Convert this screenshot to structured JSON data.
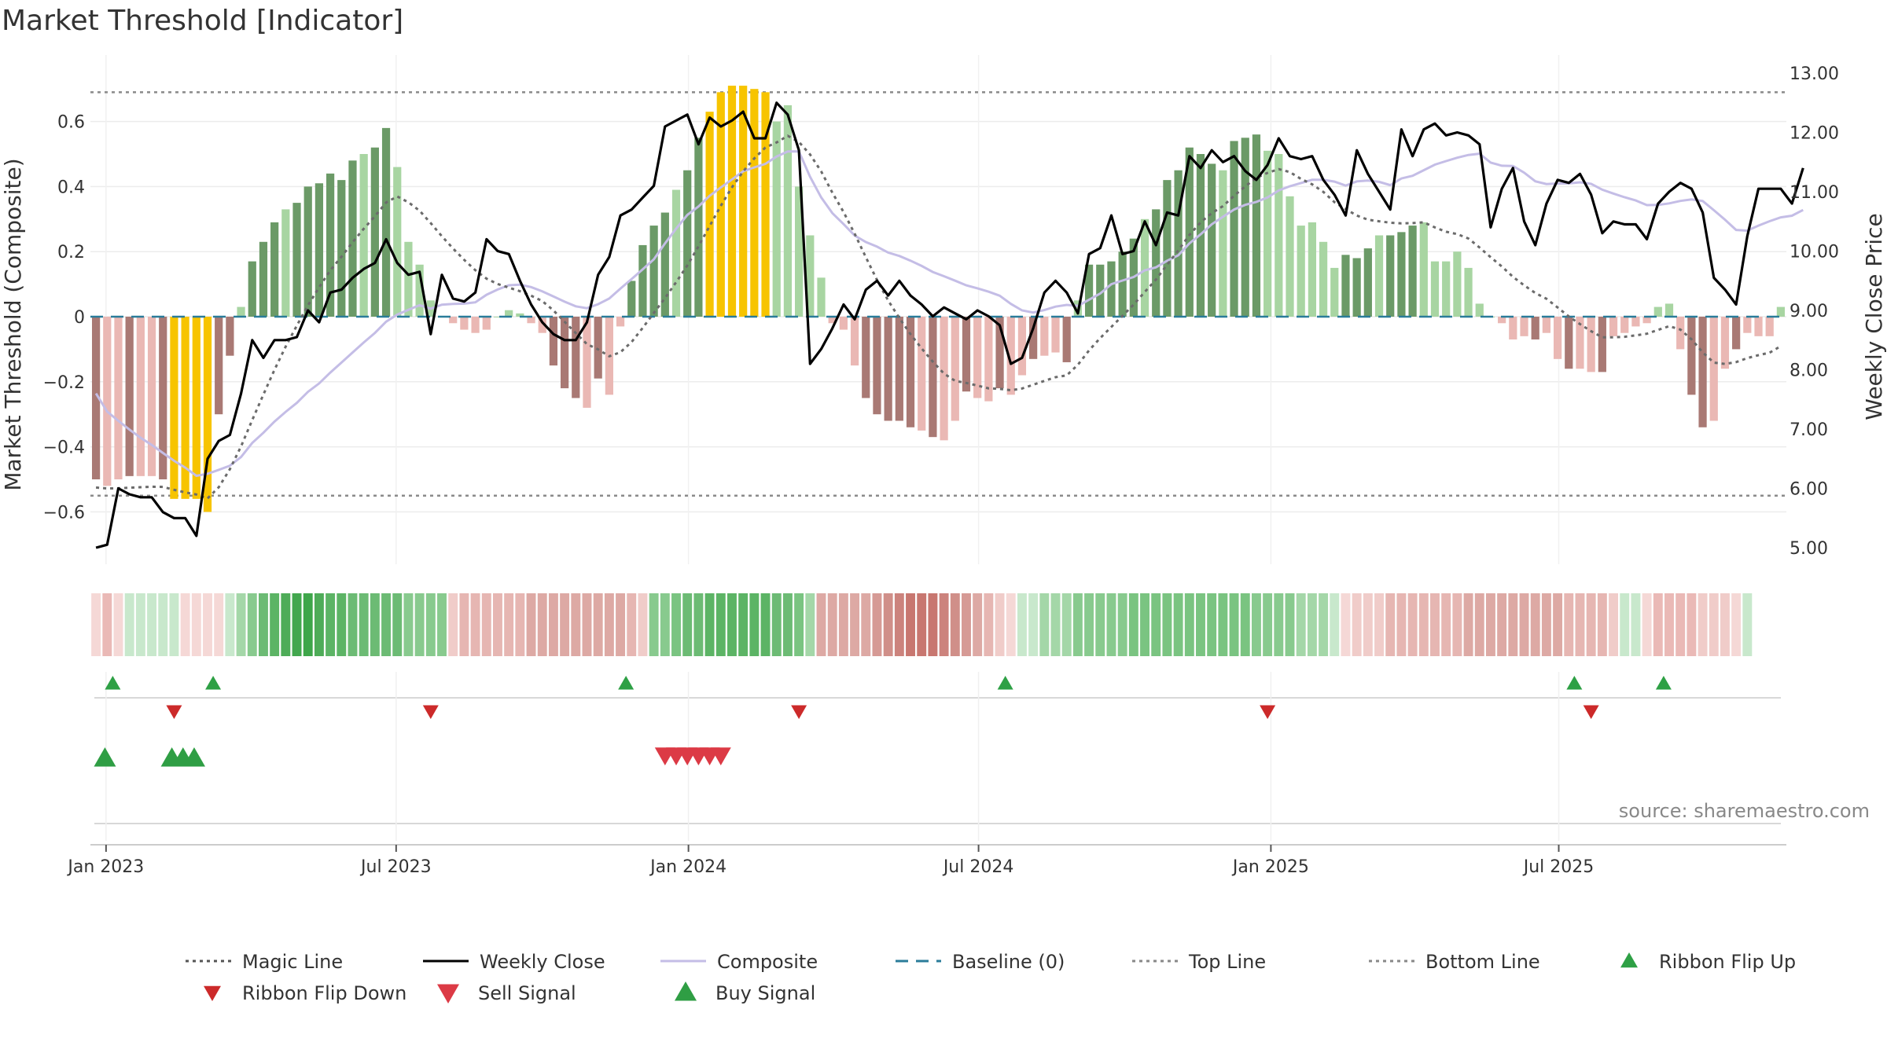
{
  "title": "Market Threshold [Indicator]",
  "source": "source: sharemaestro.com",
  "colors": {
    "bar_pos_strong": "#6b9a67",
    "bar_pos_weak": "#a8d5a2",
    "bar_neg_strong": "#a97974",
    "bar_neg_weak": "#eab8b4",
    "bar_extreme": "#f7c400",
    "weekly_close": "#000000",
    "composite": "#c4bde6",
    "magic": "#6b6b6b",
    "baseline": "#2a7c9a",
    "flip_up": "#2ea045",
    "flip_down": "#cc2a2a",
    "sell": "#dc3a45",
    "buy": "#2f9e44"
  },
  "chart_data": {
    "type": "bar+line",
    "title": "Market Threshold [Indicator]",
    "ylabel_left": "Market Threshold (Composite)",
    "ylabel_right": "Weekly Close Price",
    "ylim_left": [
      -0.77,
      0.77
    ],
    "ylim_right": [
      4.5,
      13.3
    ],
    "left_ticks": [
      0.6,
      0.4,
      0.2,
      0,
      -0.2,
      -0.4,
      -0.6
    ],
    "left_tick_labels": [
      "0.6",
      "0.4",
      "0.2",
      "0",
      "−0.2",
      "−0.4",
      "−0.6"
    ],
    "right_ticks": [
      13,
      12,
      11,
      10,
      9,
      8,
      7,
      6,
      5
    ],
    "right_tick_labels": [
      "13.00",
      "12.00",
      "11.00",
      "10.00",
      "9.00",
      "8.00",
      "7.00",
      "6.00",
      "5.00"
    ],
    "x_start": "2022-12-26",
    "x_end": "2025-09-15",
    "x_ticks": [
      {
        "label": "Jan 2023",
        "week": 0.9
      },
      {
        "label": "Jul 2023",
        "week": 26.9
      },
      {
        "label": "Jan 2024",
        "week": 53.1
      },
      {
        "label": "Jul 2024",
        "week": 79.1
      },
      {
        "label": "Jan 2025",
        "week": 105.3
      },
      {
        "label": "Jul 2025",
        "week": 131.1
      }
    ],
    "top_line": 0.69,
    "bottom_line": -0.55,
    "baseline": 0,
    "composite_bars": [
      -0.5,
      -0.52,
      -0.5,
      -0.49,
      -0.49,
      -0.49,
      -0.5,
      -0.56,
      -0.56,
      -0.56,
      -0.6,
      -0.3,
      -0.12,
      0.03,
      0.17,
      0.23,
      0.29,
      0.33,
      0.35,
      0.4,
      0.41,
      0.44,
      0.42,
      0.48,
      0.5,
      0.52,
      0.58,
      0.46,
      0.23,
      0.16,
      0.05,
      0.0,
      -0.02,
      -0.04,
      -0.05,
      -0.04,
      0.0,
      0.02,
      0.01,
      -0.02,
      -0.05,
      -0.15,
      -0.22,
      -0.25,
      -0.28,
      -0.19,
      -0.24,
      -0.03,
      0.11,
      0.22,
      0.28,
      0.32,
      0.39,
      0.45,
      0.55,
      0.63,
      0.69,
      0.71,
      0.71,
      0.7,
      0.69,
      0.6,
      0.65,
      0.4,
      0.25,
      0.12,
      -0.02,
      -0.04,
      -0.15,
      -0.25,
      -0.3,
      -0.32,
      -0.32,
      -0.34,
      -0.35,
      -0.37,
      -0.38,
      -0.32,
      -0.23,
      -0.25,
      -0.26,
      -0.22,
      -0.24,
      -0.18,
      -0.13,
      -0.12,
      -0.11,
      -0.14,
      0.05,
      0.16,
      0.16,
      0.17,
      0.2,
      0.24,
      0.3,
      0.33,
      0.42,
      0.45,
      0.52,
      0.5,
      0.47,
      0.45,
      0.54,
      0.55,
      0.56,
      0.51,
      0.5,
      0.37,
      0.28,
      0.29,
      0.23,
      0.15,
      0.19,
      0.18,
      0.21,
      0.25,
      0.25,
      0.26,
      0.28,
      0.29,
      0.17,
      0.17,
      0.2,
      0.15,
      0.04,
      0.0,
      -0.02,
      -0.07,
      -0.06,
      -0.07,
      -0.05,
      -0.13,
      -0.16,
      -0.16,
      -0.17,
      -0.17,
      -0.06,
      -0.05,
      -0.03,
      -0.02,
      0.03,
      0.04,
      -0.1,
      -0.24,
      -0.34,
      -0.32,
      -0.16,
      -0.1,
      -0.05,
      -0.06,
      -0.06,
      0.03
    ],
    "weekly_close": [
      5.0,
      5.05,
      6.0,
      5.9,
      5.85,
      5.85,
      5.6,
      5.5,
      5.5,
      5.2,
      6.5,
      6.8,
      6.9,
      7.6,
      8.5,
      8.2,
      8.5,
      8.5,
      8.55,
      9.0,
      8.8,
      9.3,
      9.35,
      9.55,
      9.7,
      9.8,
      10.2,
      9.8,
      9.6,
      9.65,
      8.6,
      9.6,
      9.2,
      9.15,
      9.3,
      10.2,
      10.0,
      9.95,
      9.5,
      9.1,
      8.8,
      8.6,
      8.5,
      8.5,
      8.8,
      9.6,
      9.9,
      10.6,
      10.7,
      10.9,
      11.1,
      12.1,
      12.2,
      12.3,
      11.8,
      12.25,
      12.1,
      12.2,
      12.35,
      11.9,
      11.9,
      12.5,
      12.3,
      11.7,
      8.1,
      8.35,
      8.7,
      9.1,
      8.85,
      9.35,
      9.5,
      9.25,
      9.5,
      9.25,
      9.1,
      8.9,
      9.05,
      8.95,
      8.85,
      9.0,
      8.9,
      8.75,
      8.1,
      8.2,
      8.7,
      9.3,
      9.5,
      9.3,
      8.95,
      9.95,
      10.05,
      10.6,
      9.95,
      10.0,
      10.5,
      10.1,
      10.65,
      10.6,
      11.6,
      11.4,
      11.7,
      11.5,
      11.6,
      11.35,
      11.2,
      11.45,
      11.9,
      11.6,
      11.55,
      11.6,
      11.2,
      10.95,
      10.6,
      11.7,
      11.3,
      11.0,
      10.7,
      12.05,
      11.6,
      12.05,
      12.15,
      11.95,
      12.0,
      11.95,
      11.8,
      10.4,
      11.05,
      11.4,
      10.5,
      10.1,
      10.8,
      11.2,
      11.15,
      11.3,
      10.95,
      10.3,
      10.5,
      10.45,
      10.45,
      10.2,
      10.8,
      11.0,
      11.15,
      11.05,
      10.65,
      9.55,
      9.35,
      9.1,
      10.25,
      11.05,
      11.05,
      11.05,
      10.8,
      11.4
    ]
  },
  "ribbon": {
    "colors": [
      "#f5d8d6",
      "#eab9b6",
      "#f5d8d6",
      "#c8e8cc",
      "#c8e8cc",
      "#c8e8cc",
      "#c8e8cc",
      "#c8e8cc",
      "#f5d8d6",
      "#f5d8d6",
      "#f5d8d6",
      "#f5d8d6",
      "#c8e8cc",
      "#a4d7a8",
      "#88ca8e",
      "#6cbb74",
      "#5cb465",
      "#4eac58",
      "#42a74e",
      "#3ea64a",
      "#4eac58",
      "#5cb465",
      "#5cb465",
      "#6cbb74",
      "#6cbb74",
      "#6cbb74",
      "#6cbb74",
      "#6cbb74",
      "#88ca8e",
      "#88ca8e",
      "#88ca8e",
      "#88ca8e",
      "#f0ccc9",
      "#e6b6b2",
      "#e6b6b2",
      "#e6b6b2",
      "#e6b6b2",
      "#e6b6b2",
      "#e6b6b2",
      "#dda9a4",
      "#dda9a4",
      "#dda9a4",
      "#dda9a4",
      "#dda9a4",
      "#dda9a4",
      "#dda9a4",
      "#dda9a4",
      "#dda9a4",
      "#e6b6b2",
      "#f0ccc9",
      "#88ca8e",
      "#88ca8e",
      "#7ac481",
      "#6cbb74",
      "#6cbb74",
      "#5cb465",
      "#5cb465",
      "#5cb465",
      "#5cb465",
      "#5cb465",
      "#5cb465",
      "#6cbb74",
      "#6cbb74",
      "#7ac481",
      "#a4d7a8",
      "#dda9a4",
      "#dda9a4",
      "#dda9a4",
      "#dda9a4",
      "#dda9a4",
      "#d69a95",
      "#d08f89",
      "#cc837d",
      "#c87770",
      "#c87770",
      "#c87770",
      "#cc837d",
      "#d08f89",
      "#d69a95",
      "#dda9a4",
      "#e6b6b2",
      "#f0ccc9",
      "#f5d8d6",
      "#c8e8cc",
      "#c8e8cc",
      "#a4d7a8",
      "#a4d7a8",
      "#a4d7a8",
      "#88ca8e",
      "#88ca8e",
      "#88ca8e",
      "#88ca8e",
      "#88ca8e",
      "#7ac481",
      "#7ac481",
      "#7ac481",
      "#7ac481",
      "#7ac481",
      "#7ac481",
      "#7ac481",
      "#7ac481",
      "#7ac481",
      "#7ac481",
      "#7ac481",
      "#88ca8e",
      "#88ca8e",
      "#88ca8e",
      "#88ca8e",
      "#a4d7a8",
      "#a4d7a8",
      "#a4d7a8",
      "#c8e8cc",
      "#f5d8d6",
      "#f0ccc9",
      "#f0ccc9",
      "#f0ccc9",
      "#e6b6b2",
      "#e6b6b2",
      "#e6b6b2",
      "#e6b6b2",
      "#e6b6b2",
      "#e6b6b2",
      "#e6b6b2",
      "#dda9a4",
      "#dda9a4",
      "#dda9a4",
      "#dda9a4",
      "#dda9a4",
      "#dda9a4",
      "#dda9a4",
      "#dda9a4",
      "#dda9a4",
      "#e6b6b2",
      "#e6b6b2",
      "#e6b6b2",
      "#e6b6b2",
      "#f0ccc9",
      "#c8e8cc",
      "#c8e8cc",
      "#f5d8d6",
      "#eab9b6",
      "#eab9b6",
      "#eab9b6",
      "#eab9b6",
      "#f0ccc9",
      "#f0ccc9",
      "#f0ccc9",
      "#f5d8d6",
      "#c8e8cc"
    ]
  },
  "signals": {
    "ribbon_flip_up_weeks": [
      1.5,
      10.5,
      47.5,
      81.5,
      132.5,
      140.5
    ],
    "ribbon_flip_down_weeks": [
      7,
      30,
      63,
      105,
      134
    ],
    "buy_weeks": [
      0.8,
      6.8,
      7.8,
      8.8
    ],
    "sell_weeks": [
      51,
      52,
      53,
      54,
      55,
      56
    ]
  },
  "legend": [
    {
      "label": "Magic Line",
      "kind": "dotted",
      "color": "#555555"
    },
    {
      "label": "Weekly Close",
      "kind": "solid",
      "color": "#000000"
    },
    {
      "label": "Composite",
      "kind": "solid",
      "color": "#c4bde6"
    },
    {
      "label": "Baseline (0)",
      "kind": "dashed",
      "color": "#2a7c9a"
    },
    {
      "label": "Top Line",
      "kind": "dotted",
      "color": "#888888"
    },
    {
      "label": "Bottom Line",
      "kind": "dotted",
      "color": "#888888"
    },
    {
      "label": "Ribbon Flip Up",
      "kind": "tri-up",
      "color": "#2ea045"
    },
    {
      "label": "Ribbon Flip Down",
      "kind": "tri-down",
      "color": "#cc2a2a"
    },
    {
      "label": "Sell Signal",
      "kind": "tri-down",
      "color": "#dc3a45"
    },
    {
      "label": "Buy Signal",
      "kind": "tri-up",
      "color": "#2f9e44"
    }
  ]
}
